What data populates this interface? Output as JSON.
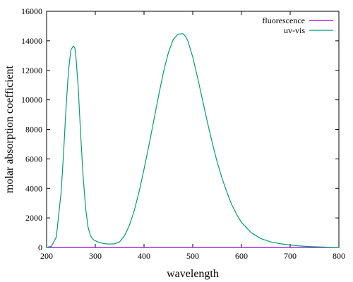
{
  "chart_data": {
    "type": "line",
    "title": "",
    "xlabel": "wavelength",
    "ylabel": "molar absorption coefficient",
    "xlim": [
      200,
      800
    ],
    "ylim": [
      0,
      16000
    ],
    "x_ticks": [
      200,
      300,
      400,
      500,
      600,
      700,
      800
    ],
    "y_ticks": [
      0,
      2000,
      4000,
      6000,
      8000,
      10000,
      12000,
      14000,
      16000
    ],
    "grid": false,
    "legend_position": "top-right",
    "series": [
      {
        "name": "fluorescence",
        "color": "#9400d3",
        "x": [
          200,
          250,
          300,
          350,
          400,
          450,
          500,
          550,
          600,
          650,
          700,
          750,
          800
        ],
        "y": [
          0,
          0,
          0,
          0,
          0,
          0,
          0,
          0,
          0,
          0,
          0,
          0,
          0
        ]
      },
      {
        "name": "uv-vis",
        "color": "#009e73",
        "x": [
          200,
          210,
          220,
          230,
          235,
          240,
          245,
          250,
          255,
          258,
          260,
          265,
          270,
          275,
          280,
          285,
          290,
          295,
          300,
          310,
          320,
          330,
          340,
          350,
          360,
          370,
          380,
          390,
          400,
          410,
          420,
          430,
          440,
          450,
          460,
          470,
          480,
          485,
          490,
          500,
          510,
          520,
          530,
          540,
          550,
          560,
          570,
          580,
          590,
          600,
          620,
          640,
          660,
          680,
          700,
          720,
          740,
          760,
          780,
          800
        ],
        "y": [
          0,
          80,
          700,
          3800,
          6500,
          9500,
          12000,
          13400,
          13650,
          13500,
          13000,
          10800,
          7600,
          4800,
          2700,
          1400,
          800,
          550,
          450,
          320,
          250,
          230,
          250,
          380,
          800,
          1500,
          2500,
          3800,
          5300,
          6900,
          8600,
          10300,
          11900,
          13200,
          14100,
          14450,
          14480,
          14300,
          14000,
          12900,
          11500,
          10000,
          8500,
          7100,
          5800,
          4700,
          3750,
          2900,
          2250,
          1700,
          1000,
          600,
          380,
          250,
          160,
          100,
          60,
          35,
          15,
          0
        ]
      }
    ]
  }
}
